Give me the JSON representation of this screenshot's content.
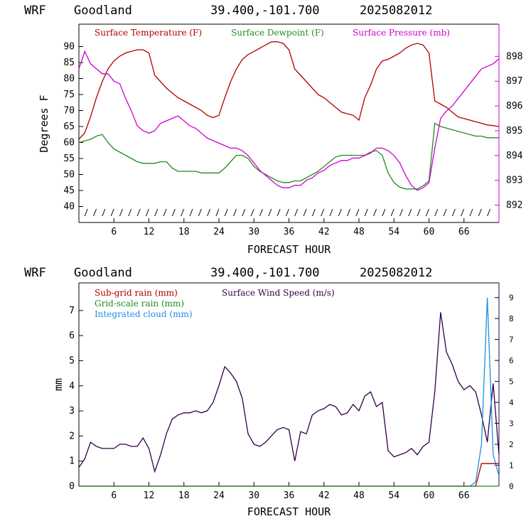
{
  "header": {
    "model": "WRF",
    "site": "Goodland",
    "coords": "39.400,-101.700",
    "run": "2025082012"
  },
  "colors": {
    "temperature": "#b00000",
    "dewpoint": "#228b22",
    "pressure": "#d000d0",
    "subgrid": "#b00000",
    "gridscale": "#228b22",
    "cloud": "#1f8fe0",
    "wind": "#30004a"
  },
  "chart_data": [
    {
      "type": "line",
      "xlabel": "FORECAST HOUR",
      "ylabel": "Degrees F",
      "xlim": [
        0,
        72
      ],
      "ylim": [
        35,
        97
      ],
      "y2lim": [
        891.3,
        899.3
      ],
      "xticks": [
        6,
        12,
        18,
        24,
        30,
        36,
        42,
        48,
        54,
        60,
        66
      ],
      "yticks": [
        40,
        45,
        50,
        55,
        60,
        65,
        70,
        75,
        80,
        85,
        90
      ],
      "y2ticks": [
        892,
        893,
        894,
        895,
        896,
        897,
        898
      ],
      "legend": [
        "Surface Temperature (F)",
        "Surface Dewpoint (F)",
        "Surface Pressure (mb)"
      ],
      "x": [
        0,
        1,
        2,
        3,
        4,
        5,
        6,
        7,
        8,
        9,
        10,
        11,
        12,
        13,
        14,
        15,
        16,
        17,
        18,
        19,
        20,
        21,
        22,
        23,
        24,
        25,
        26,
        27,
        28,
        29,
        30,
        31,
        32,
        33,
        34,
        35,
        36,
        37,
        38,
        39,
        40,
        41,
        42,
        43,
        44,
        45,
        46,
        47,
        48,
        49,
        50,
        51,
        52,
        53,
        54,
        55,
        56,
        57,
        58,
        59,
        60,
        61,
        62,
        63,
        64,
        65,
        66,
        67,
        68,
        69,
        70,
        71,
        72
      ],
      "series": [
        {
          "name": "Surface Temperature (F)",
          "axis": "left",
          "values": [
            61,
            63,
            68,
            74,
            79,
            83,
            85.5,
            87,
            88,
            88.5,
            89,
            89,
            88,
            81,
            79,
            77,
            75.5,
            74,
            73,
            72,
            71,
            70,
            68.5,
            67.8,
            68.5,
            74,
            79,
            83,
            86,
            87.5,
            88.5,
            89.5,
            90.5,
            91.5,
            91.5,
            91,
            89,
            83,
            81,
            79,
            77,
            75,
            74,
            72.5,
            71,
            69.5,
            69,
            68.5,
            67,
            74,
            78,
            83,
            85.5,
            86,
            87,
            88,
            89.5,
            90.5,
            91,
            90.5,
            88,
            73,
            72,
            71,
            69.5,
            68,
            67.5,
            67,
            66.5,
            66,
            65.5,
            65.3,
            65
          ]
        },
        {
          "name": "Surface Dewpoint (F)",
          "axis": "left",
          "values": [
            60,
            60.5,
            61,
            62,
            62.5,
            60,
            58,
            57,
            56,
            55,
            54,
            53.5,
            53.5,
            53.5,
            54,
            54,
            52,
            51,
            51,
            51,
            51,
            50.5,
            50.5,
            50.5,
            50.5,
            52,
            54,
            56,
            56,
            55,
            52.5,
            51,
            50,
            49,
            48,
            47.5,
            47.5,
            48,
            48,
            49,
            50,
            51,
            52.5,
            54,
            55.5,
            56,
            56,
            56,
            56,
            56,
            57,
            57.5,
            56,
            50.5,
            47.5,
            46,
            45.5,
            45.5,
            45.5,
            46.5,
            48,
            66,
            65,
            64.5,
            64,
            63.5,
            63,
            62.5,
            62,
            62,
            61.5,
            61.5,
            61.5
          ]
        },
        {
          "name": "Surface Pressure (mb)",
          "axis": "right",
          "values": [
            897.5,
            898.2,
            897.7,
            897.5,
            897.3,
            897.3,
            897.0,
            896.9,
            896.3,
            895.8,
            895.2,
            895.0,
            894.9,
            895.0,
            895.3,
            895.4,
            895.5,
            895.6,
            895.4,
            895.2,
            895.1,
            894.9,
            894.7,
            894.6,
            894.5,
            894.4,
            894.3,
            894.3,
            894.2,
            894.0,
            893.7,
            893.4,
            893.2,
            893.0,
            892.8,
            892.7,
            892.7,
            892.8,
            892.8,
            893.0,
            893.1,
            893.3,
            893.4,
            893.6,
            893.7,
            893.8,
            893.8,
            893.9,
            893.9,
            894.0,
            894.1,
            894.3,
            894.3,
            894.2,
            894.0,
            893.7,
            893.2,
            892.8,
            892.6,
            892.7,
            892.9,
            894.3,
            895.5,
            895.8,
            896.0,
            896.3,
            896.6,
            896.9,
            897.2,
            897.5,
            897.6,
            897.7,
            897.9
          ]
        }
      ]
    },
    {
      "type": "line",
      "xlabel": "FORECAST HOUR",
      "ylabel": "mm",
      "xlim": [
        0,
        72
      ],
      "ylim": [
        0,
        8.1
      ],
      "y2lim": [
        0,
        9.7
      ],
      "xticks": [
        6,
        12,
        18,
        24,
        30,
        36,
        42,
        48,
        54,
        60,
        66
      ],
      "yticks": [
        0,
        1,
        2,
        3,
        4,
        5,
        6,
        7
      ],
      "y2ticks": [
        0,
        1,
        2,
        3,
        4,
        5,
        6,
        7,
        8,
        9
      ],
      "legend": [
        "Sub-grid rain (mm)",
        "Grid-scale rain (mm)",
        "Integrated cloud (mm)",
        "Surface Wind Speed (m/s)"
      ],
      "x": [
        0,
        1,
        2,
        3,
        4,
        5,
        6,
        7,
        8,
        9,
        10,
        11,
        12,
        13,
        14,
        15,
        16,
        17,
        18,
        19,
        20,
        21,
        22,
        23,
        24,
        25,
        26,
        27,
        28,
        29,
        30,
        31,
        32,
        33,
        34,
        35,
        36,
        37,
        38,
        39,
        40,
        41,
        42,
        43,
        44,
        45,
        46,
        47,
        48,
        49,
        50,
        51,
        52,
        53,
        54,
        55,
        56,
        57,
        58,
        59,
        60,
        61,
        62,
        63,
        64,
        65,
        66,
        67,
        68,
        69,
        70,
        71,
        72
      ],
      "series": [
        {
          "name": "Surface Wind Speed (m/s)",
          "axis": "right",
          "values": [
            0.9,
            1.3,
            2.1,
            1.9,
            1.8,
            1.8,
            1.8,
            2.0,
            2.0,
            1.9,
            1.9,
            2.3,
            1.8,
            0.7,
            1.5,
            2.5,
            3.2,
            3.4,
            3.5,
            3.5,
            3.6,
            3.5,
            3.6,
            4.0,
            4.8,
            5.7,
            5.4,
            5.0,
            4.2,
            2.5,
            2.0,
            1.9,
            2.1,
            2.4,
            2.7,
            2.8,
            2.7,
            1.2,
            2.6,
            2.5,
            3.4,
            3.6,
            3.7,
            3.9,
            3.8,
            3.4,
            3.5,
            3.9,
            3.6,
            4.3,
            4.5,
            3.8,
            4.0,
            1.7,
            1.4,
            1.5,
            1.6,
            1.8,
            1.5,
            1.9,
            2.1,
            4.5,
            8.3,
            6.4,
            5.8,
            5.0,
            4.6,
            4.8,
            4.5,
            3.4,
            2.1,
            4.9,
            1.5
          ]
        },
        {
          "name": "Integrated cloud (mm)",
          "axis": "right",
          "values": [
            0,
            0,
            0,
            0,
            0,
            0,
            0,
            0,
            0,
            0,
            0,
            0,
            0,
            0,
            0,
            0,
            0,
            0,
            0,
            0,
            0,
            0,
            0,
            0,
            0,
            0,
            0,
            0,
            0,
            0,
            0,
            0,
            0,
            0,
            0,
            0,
            0,
            0,
            0,
            0,
            0,
            0,
            0,
            0,
            0,
            0,
            0,
            0,
            0,
            0,
            0,
            0,
            0,
            0,
            0,
            0,
            0,
            0,
            0,
            0,
            0,
            0,
            0,
            0,
            0,
            0,
            0,
            0,
            0.2,
            2.0,
            9.0,
            1.5,
            0.5
          ]
        },
        {
          "name": "Sub-grid rain (mm)",
          "axis": "left",
          "values": [
            0,
            0,
            0,
            0,
            0,
            0,
            0,
            0,
            0,
            0,
            0,
            0,
            0,
            0,
            0,
            0,
            0,
            0,
            0,
            0,
            0,
            0,
            0,
            0,
            0,
            0,
            0,
            0,
            0,
            0,
            0,
            0,
            0,
            0,
            0,
            0,
            0,
            0,
            0,
            0,
            0,
            0,
            0,
            0,
            0,
            0,
            0,
            0,
            0,
            0,
            0,
            0,
            0,
            0,
            0,
            0,
            0,
            0,
            0,
            0,
            0,
            0,
            0,
            0,
            0,
            0,
            0,
            0,
            0,
            0.9,
            0.9,
            0.9,
            0.9
          ]
        },
        {
          "name": "Grid-scale rain (mm)",
          "axis": "left",
          "values": [
            0,
            0,
            0,
            0,
            0,
            0,
            0,
            0,
            0,
            0,
            0,
            0,
            0,
            0,
            0,
            0,
            0,
            0,
            0,
            0,
            0,
            0,
            0,
            0,
            0,
            0,
            0,
            0,
            0,
            0,
            0,
            0,
            0,
            0,
            0,
            0,
            0,
            0,
            0,
            0,
            0,
            0,
            0,
            0,
            0,
            0,
            0,
            0,
            0,
            0,
            0,
            0,
            0,
            0,
            0,
            0,
            0,
            0,
            0,
            0,
            0,
            0,
            0,
            0,
            0,
            0,
            0,
            0,
            0,
            0,
            0,
            0,
            0
          ]
        }
      ]
    }
  ]
}
